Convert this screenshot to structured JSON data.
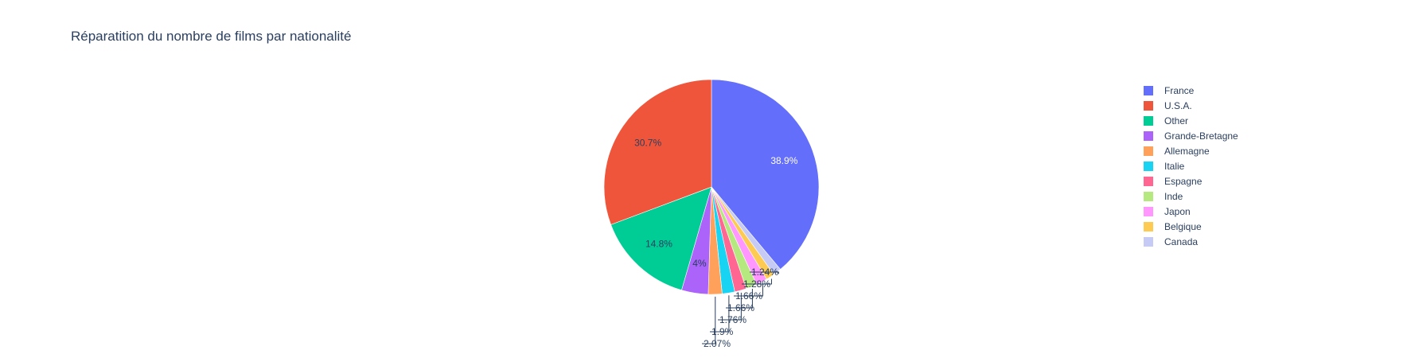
{
  "chart_data": {
    "type": "pie",
    "title": "Réparatition du nombre de films par nationalité",
    "legend_position": "right",
    "slices": [
      {
        "label": "France",
        "value": 38.9,
        "display": "38.9%",
        "color": "#636efa",
        "label_color": "#ffffff",
        "text_position": "inside"
      },
      {
        "label": "Canada",
        "value": 1.24,
        "display": "1.24%",
        "color": "#c6cbf5",
        "label_color": "#2a3f5f",
        "text_position": "outside"
      },
      {
        "label": "Belgique",
        "value": 1.28,
        "display": "1.28%",
        "color": "#fecb52",
        "label_color": "#2a3f5f",
        "text_position": "outside"
      },
      {
        "label": "Japon",
        "value": 1.66,
        "display": "1.66%",
        "color": "#ff97ff",
        "label_color": "#2a3f5f",
        "text_position": "outside"
      },
      {
        "label": "Inde",
        "value": 1.66,
        "display": "1.66%",
        "color": "#b6e880",
        "label_color": "#2a3f5f",
        "text_position": "outside"
      },
      {
        "label": "Espagne",
        "value": 1.76,
        "display": "1.76%",
        "color": "#ff6692",
        "label_color": "#2a3f5f",
        "text_position": "outside"
      },
      {
        "label": "Italie",
        "value": 1.9,
        "display": "1.9%",
        "color": "#19d3f3",
        "label_color": "#2a3f5f",
        "text_position": "outside"
      },
      {
        "label": "Allemagne",
        "value": 2.07,
        "display": "2.07%",
        "color": "#ffa15a",
        "label_color": "#2a3f5f",
        "text_position": "outside"
      },
      {
        "label": "Grande-Bretagne",
        "value": 4.0,
        "display": "4%",
        "color": "#ab63fa",
        "label_color": "#2a3f5f",
        "text_position": "inside"
      },
      {
        "label": "Other",
        "value": 14.8,
        "display": "14.8%",
        "color": "#00cc96",
        "label_color": "#2a3f5f",
        "text_position": "inside"
      },
      {
        "label": "U.S.A.",
        "value": 30.7,
        "display": "30.7%",
        "color": "#ef553b",
        "label_color": "#2a3f5f",
        "text_position": "inside"
      }
    ],
    "legend_order": [
      "France",
      "U.S.A.",
      "Other",
      "Grande-Bretagne",
      "Allemagne",
      "Italie",
      "Espagne",
      "Inde",
      "Japon",
      "Belgique",
      "Canada"
    ]
  }
}
